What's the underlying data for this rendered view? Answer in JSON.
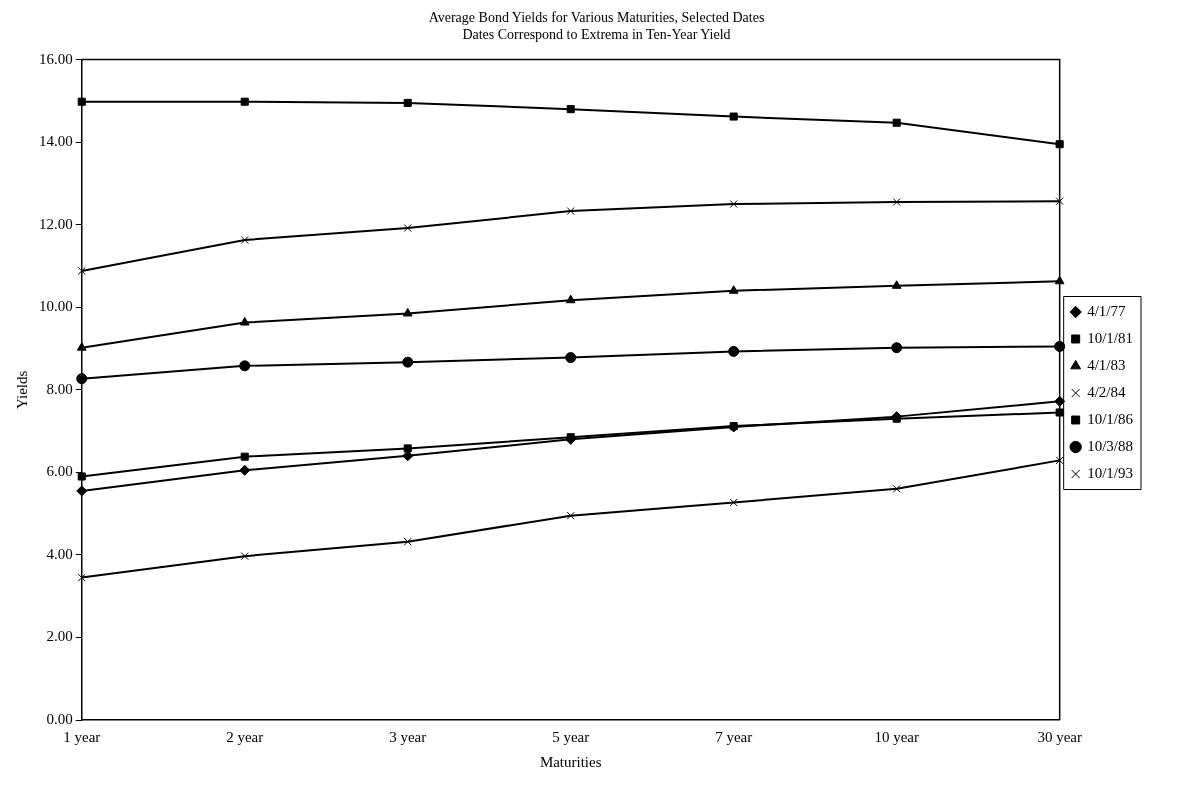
{
  "chart_data": {
    "type": "line",
    "title": "Average Bond Yields for Various Maturities, Selected Dates",
    "subtitle": "Dates Correspond to Extrema in Ten-Year Yield",
    "xlabel": "Maturities",
    "ylabel": "Yields",
    "categories": [
      "1 year",
      "2 year",
      "3 year",
      "5 year",
      "7 year",
      "10 year",
      "30 year"
    ],
    "ylim": [
      0,
      16
    ],
    "yticks": [
      {
        "value": 0,
        "label": "0.00"
      },
      {
        "value": 2,
        "label": "2.00"
      },
      {
        "value": 4,
        "label": "4.00"
      },
      {
        "value": 6,
        "label": "6.00"
      },
      {
        "value": 8,
        "label": "8.00"
      },
      {
        "value": 10,
        "label": "10.00"
      },
      {
        "value": 12,
        "label": "12.00"
      },
      {
        "value": 14,
        "label": "14.00"
      },
      {
        "value": 16,
        "label": "16.00"
      }
    ],
    "grid": false,
    "legend": "right",
    "line_style": "solid",
    "series": [
      {
        "name": "4/1/77",
        "color": "#000000",
        "marker": "diamond",
        "values": [
          5.55,
          6.05,
          6.4,
          6.8,
          7.1,
          7.35,
          7.72
        ]
      },
      {
        "name": "10/1/81",
        "color": "#000000",
        "marker": "square",
        "values": [
          14.98,
          14.98,
          14.95,
          14.8,
          14.62,
          14.47,
          13.95
        ]
      },
      {
        "name": "4/1/83",
        "color": "#000000",
        "marker": "triangle",
        "values": [
          9.02,
          9.63,
          9.85,
          10.17,
          10.4,
          10.52,
          10.63
        ]
      },
      {
        "name": "4/2/84",
        "color": "#000000",
        "marker": "cross",
        "values": [
          10.88,
          11.63,
          11.92,
          12.33,
          12.5,
          12.55,
          12.57
        ]
      },
      {
        "name": "10/1/86",
        "color": "#000000",
        "marker": "square",
        "values": [
          5.9,
          6.38,
          6.58,
          6.85,
          7.12,
          7.3,
          7.45
        ]
      },
      {
        "name": "10/3/88",
        "color": "#000000",
        "marker": "circle",
        "values": [
          8.27,
          8.58,
          8.67,
          8.78,
          8.93,
          9.02,
          9.05
        ]
      },
      {
        "name": "10/1/93",
        "color": "#000000",
        "marker": "cross",
        "values": [
          3.45,
          3.97,
          4.32,
          4.95,
          5.27,
          5.6,
          6.29
        ]
      }
    ]
  }
}
